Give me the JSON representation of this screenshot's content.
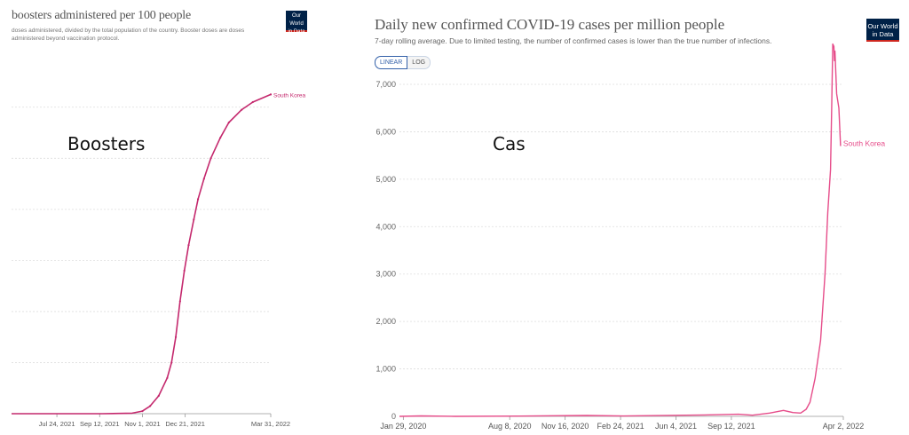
{
  "panels": [
    {
      "title": "boosters administered per 100 people",
      "subtitle": "doses administered, divided by the total population of the country. Booster doses are doses administered beyond vaccination protocol.",
      "logo": [
        "Our World",
        "in Data"
      ],
      "overlay": "Boosters"
    },
    {
      "title": "Daily new confirmed COVID-19 cases per million people",
      "subtitle": "7-day rolling average. Due to limited testing, the number of confirmed cases is lower than the true number of infections.",
      "logo": [
        "Our World",
        "in Data"
      ],
      "overlay": "Cas",
      "toggle": {
        "linear": "LINEAR",
        "log": "LOG"
      }
    }
  ],
  "chart_data": [
    {
      "type": "line",
      "title": "boosters administered per 100 people",
      "xlabel": "",
      "ylabel": "",
      "color": "#c4286d",
      "grid": true,
      "y_ticks_labeled": false,
      "x_ticks": [
        "Jul 24, 2021",
        "Sep 12, 2021",
        "Nov 1, 2021",
        "Dec 21, 2021",
        "Mar 31, 2022"
      ],
      "x_range": [
        "2021-06-01",
        "2022-03-31"
      ],
      "ylim": [
        0,
        65
      ],
      "series": [
        {
          "name": "South Korea",
          "points": [
            [
              "2021-06-01",
              0
            ],
            [
              "2021-09-15",
              0
            ],
            [
              "2021-10-20",
              0.1
            ],
            [
              "2021-11-01",
              0.5
            ],
            [
              "2021-11-10",
              1.5
            ],
            [
              "2021-11-20",
              3.5
            ],
            [
              "2021-11-30",
              7
            ],
            [
              "2021-12-05",
              10
            ],
            [
              "2021-12-10",
              15
            ],
            [
              "2021-12-15",
              22
            ],
            [
              "2021-12-20",
              28
            ],
            [
              "2021-12-25",
              33
            ],
            [
              "2021-12-31",
              38
            ],
            [
              "2022-01-05",
              42
            ],
            [
              "2022-01-12",
              46
            ],
            [
              "2022-01-20",
              50
            ],
            [
              "2022-01-31",
              54
            ],
            [
              "2022-02-10",
              57
            ],
            [
              "2022-02-25",
              59.5
            ],
            [
              "2022-03-10",
              61
            ],
            [
              "2022-03-31",
              62.5
            ]
          ]
        }
      ]
    },
    {
      "type": "line",
      "title": "Daily new confirmed COVID-19 cases per million people",
      "xlabel": "",
      "ylabel": "",
      "color": "#e64d8a",
      "grid": true,
      "x_ticks": [
        "Jan 29, 2020",
        "Aug 8, 2020",
        "Nov 16, 2020",
        "Feb 24, 2021",
        "Jun 4, 2021",
        "Sep 12, 2021",
        "Apr 2, 2022"
      ],
      "y_ticks": [
        "0",
        "1,000",
        "2,000",
        "3,000",
        "4,000",
        "5,000",
        "6,000",
        "7,000"
      ],
      "x_range": [
        "2020-01-22",
        "2022-04-02"
      ],
      "ylim": [
        0,
        7000
      ],
      "series": [
        {
          "name": "South Korea",
          "points": [
            [
              "2020-01-22",
              0
            ],
            [
              "2020-03-01",
              10
            ],
            [
              "2020-05-01",
              0.5
            ],
            [
              "2020-08-25",
              5
            ],
            [
              "2020-12-25",
              18
            ],
            [
              "2021-03-01",
              8
            ],
            [
              "2021-07-25",
              30
            ],
            [
              "2021-09-25",
              45
            ],
            [
              "2021-10-20",
              25
            ],
            [
              "2021-11-20",
              70
            ],
            [
              "2021-12-15",
              125
            ],
            [
              "2022-01-01",
              80
            ],
            [
              "2022-01-15",
              70
            ],
            [
              "2022-01-25",
              150
            ],
            [
              "2022-02-01",
              300
            ],
            [
              "2022-02-10",
              800
            ],
            [
              "2022-02-20",
              1600
            ],
            [
              "2022-02-28",
              3000
            ],
            [
              "2022-03-05",
              4300
            ],
            [
              "2022-03-10",
              5200
            ],
            [
              "2022-03-12",
              6500
            ],
            [
              "2022-03-14",
              7850
            ],
            [
              "2022-03-16",
              7800
            ],
            [
              "2022-03-17",
              7500
            ],
            [
              "2022-03-18",
              7700
            ],
            [
              "2022-03-21",
              6800
            ],
            [
              "2022-03-25",
              6500
            ],
            [
              "2022-03-28",
              5700
            ]
          ]
        }
      ]
    }
  ]
}
